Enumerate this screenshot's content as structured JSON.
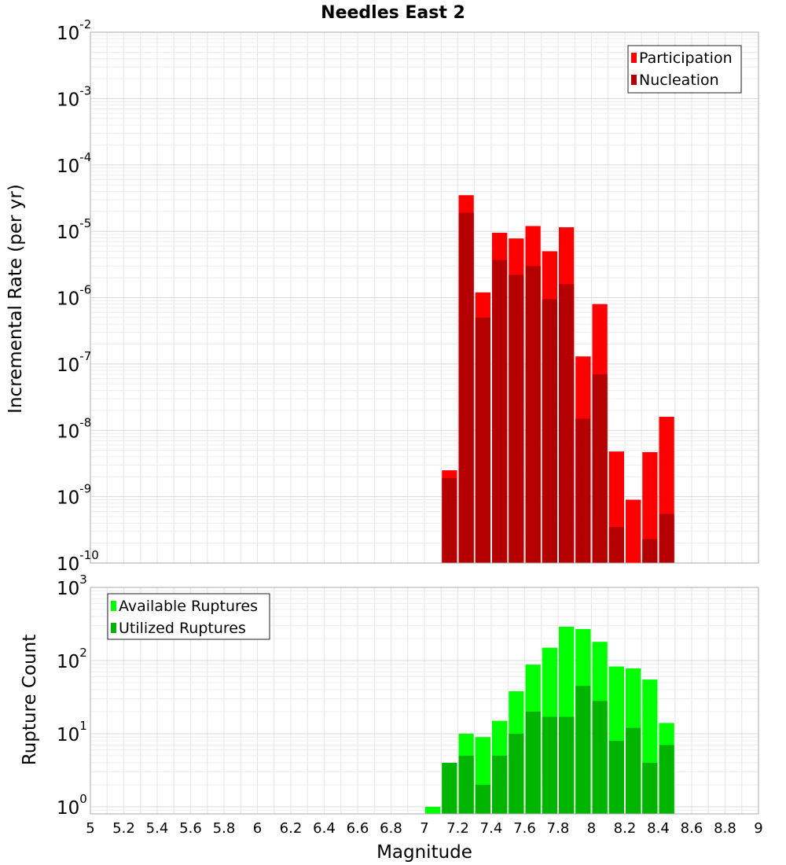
{
  "chart_data": [
    {
      "type": "bar",
      "title": "Needles East 2",
      "ylabel": "Incremental Rate (per yr)",
      "xlabel": "",
      "yscale": "log",
      "ylim": [
        1e-10,
        0.01
      ],
      "xlim": [
        5,
        9
      ],
      "bar_width": 0.1,
      "ytick_bases": [
        "10",
        "10",
        "10",
        "10",
        "10",
        "10",
        "10",
        "10",
        "10"
      ],
      "ytick_exponents": [
        "-10",
        "-9",
        "-8",
        "-7",
        "-6",
        "-5",
        "-4",
        "-3",
        "-2"
      ],
      "legend": {
        "position": "top-right",
        "entries": [
          "Participation",
          "Nucleation"
        ]
      },
      "grid": true,
      "series": [
        {
          "name": "Participation",
          "color": "#ff0000",
          "x": [
            7.15,
            7.25,
            7.35,
            7.45,
            7.55,
            7.65,
            7.75,
            7.85,
            7.95,
            8.05,
            8.15,
            8.25,
            8.35,
            8.45
          ],
          "values": [
            2.5e-09,
            3.5e-05,
            1.2e-06,
            9.5e-06,
            7.8e-06,
            1.2e-05,
            5e-06,
            1.15e-05,
            1.3e-07,
            8e-07,
            4.8e-09,
            9e-10,
            4.7e-09,
            1.6e-08
          ]
        },
        {
          "name": "Nucleation",
          "color": "#b40000",
          "x": [
            7.15,
            7.25,
            7.35,
            7.45,
            7.55,
            7.65,
            7.75,
            7.85,
            7.95,
            8.05,
            8.15,
            8.25,
            8.35,
            8.45
          ],
          "values": [
            1.9e-09,
            1.9e-05,
            5e-07,
            3.7e-06,
            2.2e-06,
            3e-06,
            9.5e-07,
            1.6e-06,
            1.5e-08,
            7e-08,
            3.5e-10,
            1e-10,
            2.3e-10,
            5.5e-10
          ]
        }
      ]
    },
    {
      "type": "bar",
      "title": "",
      "ylabel": "Rupture Count",
      "xlabel": "Magnitude",
      "yscale": "log",
      "ylim": [
        0.8,
        1000
      ],
      "xlim": [
        5,
        9
      ],
      "bar_width": 0.1,
      "ytick_bases": [
        "10",
        "10",
        "10",
        "10"
      ],
      "ytick_exponents": [
        "0",
        "1",
        "2",
        "3"
      ],
      "xtick_labels": [
        "5",
        "5.2",
        "5.4",
        "5.6",
        "5.8",
        "6",
        "6.2",
        "6.4",
        "6.6",
        "6.8",
        "7",
        "7.2",
        "7.4",
        "7.6",
        "7.8",
        "8",
        "8.2",
        "8.4",
        "8.6",
        "8.8",
        "9"
      ],
      "legend": {
        "position": "top-left",
        "entries": [
          "Available Ruptures",
          "Utilized Ruptures"
        ]
      },
      "grid": true,
      "series": [
        {
          "name": "Available Ruptures",
          "color": "#00ff00",
          "x": [
            7.05,
            7.15,
            7.25,
            7.35,
            7.45,
            7.55,
            7.65,
            7.75,
            7.85,
            7.95,
            8.05,
            8.15,
            8.25,
            8.35,
            8.45
          ],
          "values": [
            1,
            4,
            10,
            9,
            15,
            38,
            88,
            150,
            290,
            270,
            180,
            83,
            78,
            55,
            14
          ]
        },
        {
          "name": "Utilized Ruptures",
          "color": "#00b400",
          "x": [
            7.15,
            7.25,
            7.35,
            7.45,
            7.55,
            7.65,
            7.75,
            7.85,
            7.95,
            8.05,
            8.15,
            8.25,
            8.35,
            8.45
          ],
          "values": [
            4,
            5,
            2,
            5,
            10,
            20,
            17,
            17,
            45,
            28,
            8,
            12,
            4,
            7
          ]
        }
      ]
    }
  ]
}
